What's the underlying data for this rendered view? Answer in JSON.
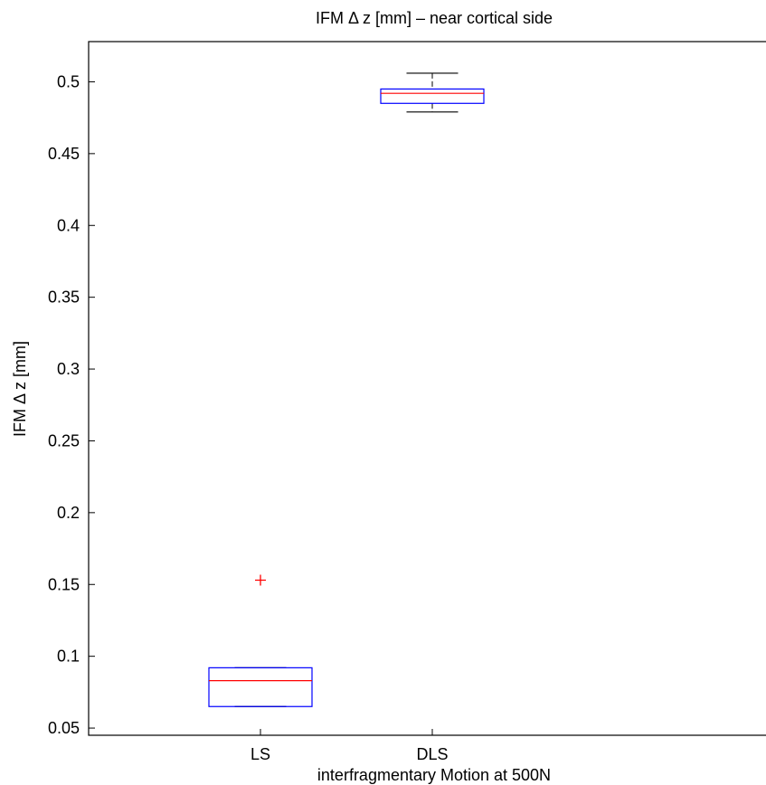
{
  "chart_data": {
    "type": "box",
    "title": "IFM Δ z [mm] – near cortical side",
    "xlabel": "interfragmentary Motion at 500N",
    "ylabel": "IFM Δ z [mm]",
    "ylim": [
      0.045,
      0.528
    ],
    "yticks": [
      0.05,
      0.1,
      0.15,
      0.2,
      0.25,
      0.3,
      0.35,
      0.4,
      0.45,
      0.5
    ],
    "categories": [
      "LS",
      "DLS"
    ],
    "boxes": [
      {
        "category": "LS",
        "whisker_low": 0.065,
        "q1": 0.065,
        "median": 0.083,
        "q3": 0.092,
        "whisker_high": 0.092,
        "outliers": [
          0.153
        ]
      },
      {
        "category": "DLS",
        "whisker_low": 0.479,
        "q1": 0.485,
        "median": 0.492,
        "q3": 0.495,
        "whisker_high": 0.506,
        "outliers": []
      }
    ],
    "colors": {
      "box": "#0000ff",
      "median": "#ff0000",
      "whisker": "#000000",
      "outlier": "#ff0000"
    },
    "grid": false
  }
}
